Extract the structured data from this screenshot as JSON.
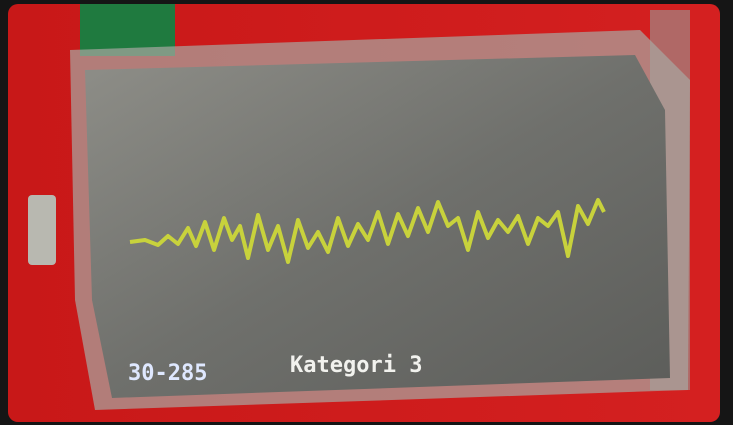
{
  "screen": {
    "range_text": "30-285",
    "category_text": "Kategori 3"
  }
}
